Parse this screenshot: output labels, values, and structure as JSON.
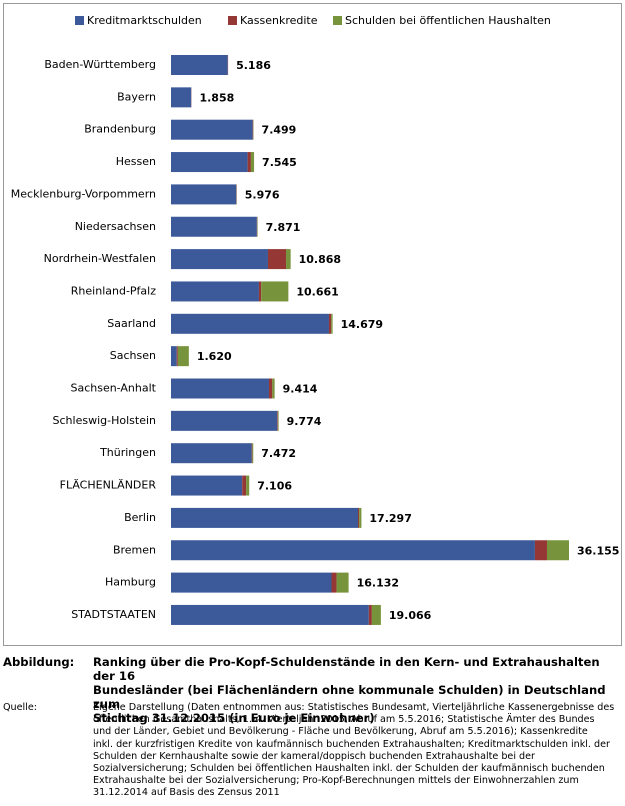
{
  "chart_data": {
    "type": "stacked-bar-horizontal",
    "categories": [
      "Baden-Württemberg",
      "Bayern",
      "Brandenburg",
      "Hessen",
      "Mecklenburg-Vorpommern",
      "Niedersachsen",
      "Nordrhein-Westfalen",
      "Rheinland-Pfalz",
      "Saarland",
      "Sachsen",
      "Sachsen-Anhalt",
      "Schleswig-Holstein",
      "Thüringen",
      "FLÄCHENLÄNDER",
      "Berlin",
      "Bremen",
      "Hamburg",
      "STADTSTAATEN"
    ],
    "series": [
      {
        "name": "Kreditmarktschulden",
        "color": "#3c5a9a",
        "values": [
          5160,
          1840,
          7420,
          6960,
          5930,
          7800,
          8810,
          7990,
          14350,
          520,
          8900,
          9650,
          7330,
          6470,
          16990,
          33060,
          14580,
          17970
        ]
      },
      {
        "name": "Kassenkredite",
        "color": "#953735",
        "values": [
          26,
          18,
          50,
          300,
          30,
          40,
          1640,
          200,
          200,
          100,
          300,
          60,
          60,
          360,
          100,
          1095,
          460,
          276
        ]
      },
      {
        "name": "Schulden bei öffentlichen Haushalten",
        "color": "#77933c",
        "values": [
          0,
          0,
          29,
          285,
          16,
          31,
          418,
          2471,
          129,
          1000,
          214,
          64,
          82,
          276,
          207,
          2000,
          1092,
          820
        ]
      }
    ],
    "totals": {
      "values": [
        5186,
        1858,
        7499,
        7545,
        5976,
        7871,
        10868,
        10661,
        14679,
        1620,
        9414,
        9774,
        7472,
        7106,
        17297,
        36155,
        16132,
        19066
      ],
      "value_labels": [
        "5.186",
        "1.858",
        "7.499",
        "7.545",
        "5.976",
        "7.871",
        "10.868",
        "10.661",
        "14.679",
        "1.620",
        "9.414",
        "9.774",
        "7.472",
        "7.106",
        "17.297",
        "36.155",
        "16.132",
        "19.066"
      ]
    },
    "xlim": [
      0,
      40000
    ]
  },
  "caption": {
    "label": "Abbildung:",
    "title": [
      "Ranking über die Pro-Kopf-Schuldenstände in den Kern- und Extrahaushalten der 16",
      "Bundesländer (bei Flächenländern ohne kommunale Schulden) in Deutschland zum",
      "Stichtag 31.12.2015 (in Euro je Einwohner)"
    ]
  },
  "source": {
    "label": "Quelle:",
    "lines": [
      "Eigene Darstellung (Daten entnommen aus: Statistisches Bundesamt, Vierteljährliche Kassenergebnisse des",
      "öffentlichen Gesamthaushalts, 1.-4. Vierteljahr 2015, Abruf am 5.5.2016;  Statistische Ämter des Bundes",
      "und der Länder, Gebiet und Bevölkerung - Fläche und Bevölkerung, Abruf am 5.5.2016);  Kassenkredite",
      "inkl. der kurzfristigen Kredite von kaufmännisch buchenden Extrahaushalten; Kreditmarktschulden inkl. der",
      "Schulden der Kernhaushalte sowie der kameral/doppisch buchenden Extrahaushalte bei der",
      "Sozialversicherung; Schulden bei öffentlichen Haushalten inkl. der Schulden der kaufmännisch buchenden",
      "Extrahaushalte bei der Sozialversicherung; Pro-Kopf-Berechnungen mittels der Einwohnerzahlen zum",
      "31.12.2014 auf Basis des Zensus 2011"
    ]
  }
}
